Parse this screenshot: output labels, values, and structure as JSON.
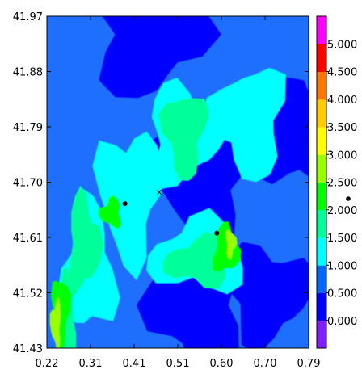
{
  "chart_data": {
    "type": "heatmap",
    "title": "",
    "xlabel": "",
    "ylabel": "",
    "xlim": [
      0.22,
      0.79
    ],
    "ylim": [
      41.43,
      41.97
    ],
    "x_ticks": [
      "0.22",
      "0.31",
      "0.41",
      "0.51",
      "0.60",
      "0.70",
      "0.79"
    ],
    "y_ticks": [
      "41.97",
      "41.88",
      "41.79",
      "41.70",
      "41.61",
      "41.52",
      "41.43"
    ],
    "colorbar": {
      "levels": [
        0.0,
        0.5,
        1.0,
        1.5,
        2.0,
        2.5,
        3.0,
        3.5,
        4.0,
        4.5,
        5.0
      ],
      "labels": [
        "0.000",
        "0.500",
        "1.000",
        "1.500",
        "2.000",
        "2.500",
        "3.000",
        "3.500",
        "4.000",
        "4.500",
        "5.000"
      ],
      "colors": [
        "#7f1fff",
        "#0000ff",
        "#0066ff",
        "#00ffff",
        "#00ff99",
        "#00ff00",
        "#99ff00",
        "#ffff00",
        "#ffcc00",
        "#ff7700",
        "#ff0000",
        "#ff00ff"
      ]
    },
    "field_regions": [
      {
        "level": "0.500-1.000",
        "color": "#1f6fff",
        "description": "background field"
      },
      {
        "level": "0.000-0.500",
        "color": "#0000ff",
        "centers": [
          [
            0.44,
            41.94
          ],
          [
            0.56,
            41.71
          ],
          [
            0.76,
            41.77
          ],
          [
            0.7,
            41.52
          ],
          [
            0.55,
            41.5
          ]
        ]
      },
      {
        "level": "1.000-1.500",
        "color": "#00ffff",
        "centers": [
          [
            0.4,
            41.68
          ],
          [
            0.55,
            41.58
          ],
          [
            0.52,
            41.78
          ],
          [
            0.66,
            41.8
          ],
          [
            0.31,
            41.56
          ]
        ]
      },
      {
        "level": "1.500-2.000",
        "color": "#00ff99",
        "centers": [
          [
            0.55,
            41.57
          ],
          [
            0.3,
            41.6
          ],
          [
            0.52,
            41.78
          ],
          [
            0.26,
            41.48
          ]
        ]
      },
      {
        "level": "2.000-2.500",
        "color": "#00ff00",
        "centers": [
          [
            0.61,
            41.59
          ],
          [
            0.25,
            41.49
          ],
          [
            0.36,
            41.65
          ]
        ]
      },
      {
        "level": "2.500-3.000",
        "color": "#99ff00",
        "centers": [
          [
            0.62,
            41.6
          ],
          [
            0.24,
            41.47
          ]
        ]
      }
    ],
    "points": [
      {
        "marker": "dot",
        "x": 0.39,
        "y": 41.665
      },
      {
        "marker": "dot",
        "x": 0.59,
        "y": 41.617
      },
      {
        "marker": "x",
        "x": 0.465,
        "y": 41.685,
        "label": "x"
      }
    ],
    "legend_dot": {
      "label": ""
    }
  }
}
